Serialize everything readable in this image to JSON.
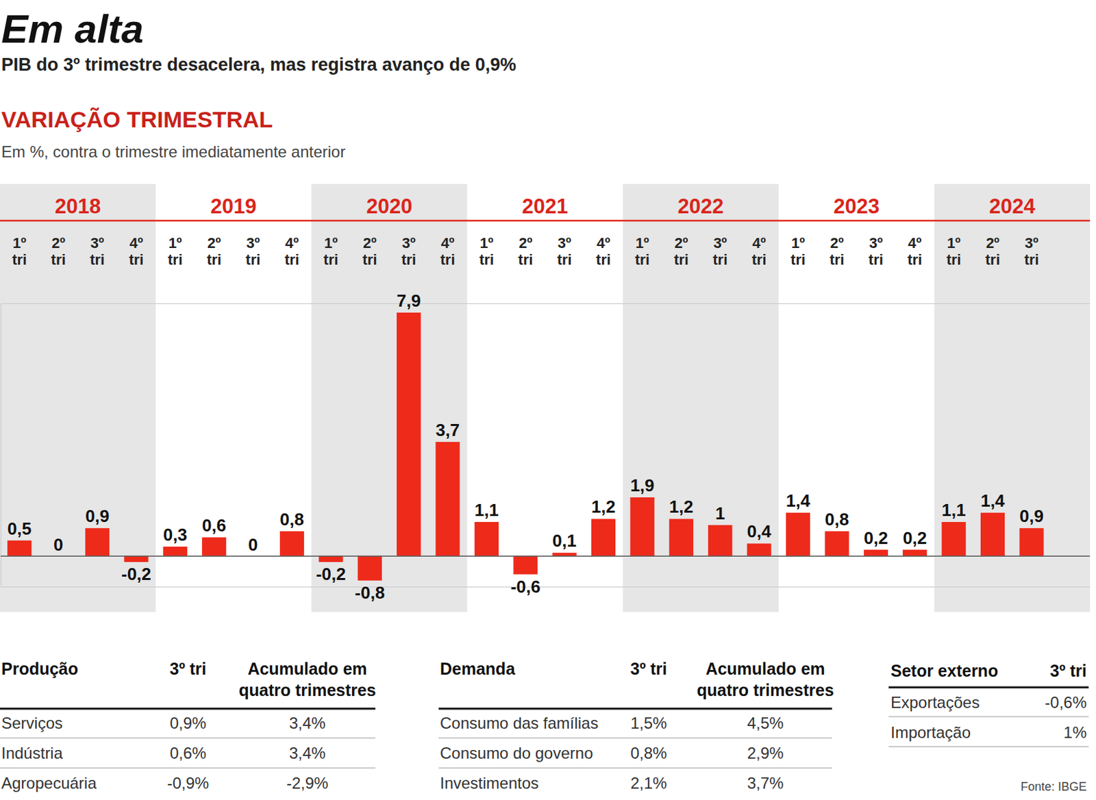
{
  "chart_data": {
    "type": "bar",
    "title": "Em alta",
    "subtitle": "PIB do 3º trimestre desacelera, mas registra avanço de 0,9%",
    "annotations": [
      "VARIAÇÃO TRIMESTRAL",
      "Em %, contra o trimestre imediatamente anterior"
    ],
    "years": [
      "2018",
      "2019",
      "2020",
      "2021",
      "2022",
      "2023",
      "2024"
    ],
    "categories": [
      "1º tri",
      "2º tri",
      "3º tri",
      "4º tri",
      "1º tri",
      "2º tri",
      "3º tri",
      "4º tri",
      "1º tri",
      "2º tri",
      "3º tri",
      "4º tri",
      "1º tri",
      "2º tri",
      "3º tri",
      "4º tri",
      "1º tri",
      "2º tri",
      "3º tri",
      "4º tri",
      "1º tri",
      "2º tri",
      "3º tri",
      "4º tri",
      "1º tri",
      "2º tri",
      "3º tri"
    ],
    "values": [
      0.5,
      0,
      0.9,
      -0.2,
      0.3,
      0.6,
      0,
      0.8,
      -0.2,
      -0.8,
      7.9,
      3.7,
      1.1,
      -0.6,
      0.1,
      1.2,
      1.9,
      1.2,
      1,
      0.4,
      1.4,
      0.8,
      0.2,
      0.2,
      1.1,
      1.4,
      0.9
    ],
    "value_labels": [
      "0,5",
      "0",
      "0,9",
      "-0,2",
      "0,3",
      "0,6",
      "0",
      "0,8",
      "-0,2",
      "-0,8",
      "7,9",
      "3,7",
      "1,1",
      "-0,6",
      "0,1",
      "1,2",
      "1,9",
      "1,2",
      "1",
      "0,4",
      "1,4",
      "0,8",
      "0,2",
      "0,2",
      "1,1",
      "1,4",
      "0,9"
    ],
    "color": "#ee2a1b",
    "ylim": [
      -1,
      8.2
    ],
    "yticks": [
      0
    ],
    "tick_labels": "x",
    "grid": false,
    "data_labels": true
  },
  "tables": [
    {
      "header": [
        "Produção",
        "3º tri",
        [
          "Acumulado em",
          "quatro trimestres"
        ]
      ],
      "rows": [
        [
          "Serviços",
          "0,9%",
          "3,4%"
        ],
        [
          "Indústria",
          "0,6%",
          "3,4%"
        ],
        [
          "Agropecuária",
          "-0,9%",
          "-2,9%"
        ]
      ]
    },
    {
      "header": [
        "Demanda",
        "3º tri",
        [
          "Acumulado em",
          "quatro trimestres"
        ]
      ],
      "rows": [
        [
          "Consumo das famílias",
          "1,5%",
          "4,5%"
        ],
        [
          "Consumo do governo",
          "0,8%",
          "2,9%"
        ],
        [
          "Investimentos",
          "2,1%",
          "3,7%"
        ]
      ]
    },
    {
      "header": [
        "Setor externo",
        "3º tri"
      ],
      "rows": [
        [
          "Exportações",
          "-0,6%"
        ],
        [
          "Importação",
          "1%"
        ]
      ]
    }
  ],
  "source": "Fonte: IBGE"
}
